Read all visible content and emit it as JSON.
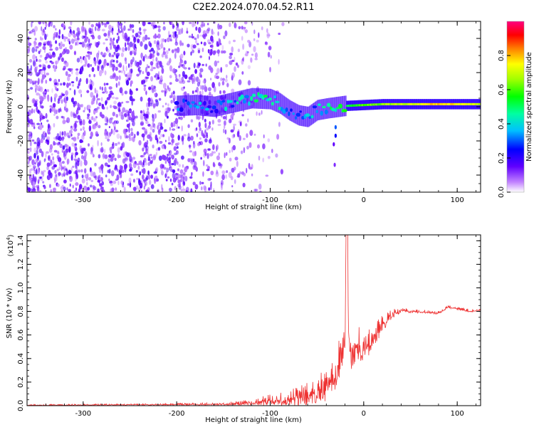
{
  "title": "C2E2.2024.070.04.52.R11",
  "chart_data": [
    {
      "type": "heatmap",
      "panel": "spectrogram",
      "xlabel": "Height of straight line (km)",
      "ylabel": "Frequency (Hz)",
      "xlim": [
        -360,
        125
      ],
      "ylim": [
        -50,
        50
      ],
      "xticks": [
        -300,
        -200,
        -100,
        0,
        100
      ],
      "yticks": [
        -40,
        -20,
        0,
        20,
        40
      ],
      "colorbar": {
        "label": "Normalized spectral amplitude",
        "range": [
          0.0,
          1.0
        ],
        "ticks": [
          0.0,
          0.2,
          0.4,
          0.6,
          0.8
        ],
        "colormap": [
          "#ffffff",
          "#8000ff",
          "#0000ff",
          "#00c0ff",
          "#00ff80",
          "#00ff00",
          "#c0ff00",
          "#ffff00",
          "#ff8000",
          "#ff0000",
          "#ff0080"
        ]
      },
      "noise_region_x": [
        -360,
        -140
      ],
      "ridge": [
        {
          "x": -200,
          "y": 0.5,
          "amp": 0.25
        },
        {
          "x": -180,
          "y": 1.0,
          "amp": 0.3
        },
        {
          "x": -160,
          "y": 0.0,
          "amp": 0.3
        },
        {
          "x": -140,
          "y": 2.5,
          "amp": 0.35
        },
        {
          "x": -120,
          "y": 5.0,
          "amp": 0.4
        },
        {
          "x": -100,
          "y": 4.5,
          "amp": 0.45
        },
        {
          "x": -90,
          "y": 2.0,
          "amp": 0.4
        },
        {
          "x": -80,
          "y": -2.0,
          "amp": 0.35
        },
        {
          "x": -70,
          "y": -5.0,
          "amp": 0.35
        },
        {
          "x": -60,
          "y": -6.0,
          "amp": 0.3
        },
        {
          "x": -50,
          "y": -2.0,
          "amp": 0.35
        },
        {
          "x": -40,
          "y": -1.0,
          "amp": 0.4
        },
        {
          "x": -20,
          "y": 0.5,
          "amp": 0.5
        },
        {
          "x": 0,
          "y": 1.0,
          "amp": 0.6
        },
        {
          "x": 20,
          "y": 1.5,
          "amp": 0.65
        },
        {
          "x": 50,
          "y": 1.5,
          "amp": 0.7
        },
        {
          "x": 80,
          "y": 1.5,
          "amp": 0.8
        },
        {
          "x": 100,
          "y": 1.5,
          "amp": 0.75
        },
        {
          "x": 125,
          "y": 1.5,
          "amp": 0.7
        }
      ]
    },
    {
      "type": "line",
      "panel": "snr",
      "xlabel": "Height of straight line (km)",
      "ylabel": "SNR (10 * v/v)",
      "multiplier_label": "(x10",
      "multiplier_exp": "4",
      "xlim": [
        -360,
        125
      ],
      "ylim": [
        0.0,
        1.45
      ],
      "xticks": [
        -300,
        -200,
        -100,
        0,
        100
      ],
      "yticks": [
        0.0,
        0.2,
        0.4,
        0.6,
        0.8,
        1.0,
        1.2,
        1.4
      ],
      "series": [
        {
          "color": "#ee3333",
          "x": [
            -360,
            -300,
            -250,
            -200,
            -160,
            -140,
            -120,
            -100,
            -80,
            -60,
            -50,
            -40,
            -35,
            -30,
            -28,
            -25,
            -22,
            -20,
            -18,
            -16,
            -14,
            -10,
            0,
            10,
            20,
            30,
            40,
            60,
            80,
            90,
            100,
            110,
            125
          ],
          "y": [
            0.005,
            0.008,
            0.01,
            0.012,
            0.015,
            0.02,
            0.03,
            0.05,
            0.07,
            0.1,
            0.13,
            0.18,
            0.24,
            0.3,
            0.4,
            0.5,
            0.62,
            0.7,
            1.45,
            0.6,
            0.5,
            0.55,
            0.5,
            0.6,
            0.7,
            0.78,
            0.81,
            0.8,
            0.79,
            0.84,
            0.83,
            0.81,
            0.81
          ],
          "spread": [
            0.005,
            0.006,
            0.006,
            0.008,
            0.01,
            0.015,
            0.025,
            0.05,
            0.07,
            0.1,
            0.12,
            0.14,
            0.15,
            0.16,
            0.2,
            0.25,
            0.3,
            0.3,
            0.3,
            0.25,
            0.2,
            0.2,
            0.15,
            0.12,
            0.08,
            0.04,
            0.02,
            0.015,
            0.015,
            0.015,
            0.015,
            0.015,
            0.015
          ]
        }
      ]
    }
  ]
}
